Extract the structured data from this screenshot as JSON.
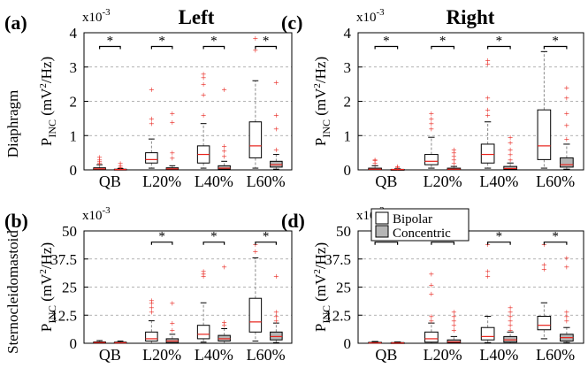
{
  "figure": {
    "col_titles": [
      "Left",
      "Right"
    ],
    "row_labels": [
      "Diaphragm",
      "Sternocleidomastoid"
    ],
    "ylabel_main": "P",
    "ylabel_sub": "INC",
    "ylabel_unit_pre": "(mV",
    "ylabel_unit_sup": "2",
    "ylabel_unit_post": "/Hz)",
    "exponent_base": "x10",
    "exponent_power": "-3",
    "legend": {
      "bipolar": "Bipolar",
      "concentric": "Concentric"
    },
    "colors": {
      "bipolar_fill": "#ffffff",
      "concentric_fill": "#b5b5b5",
      "median": "#e8231c",
      "outlier": "#e8231c",
      "whisker": "#8a8a8a",
      "grid": "#9a9a9a"
    }
  },
  "chart_data": [
    {
      "panel": "(a)",
      "title": "Left",
      "type": "box",
      "categories": [
        "QB",
        "L20%",
        "L40%",
        "L60%"
      ],
      "ylim": [
        0,
        4
      ],
      "yticks": [
        0,
        1,
        2,
        3,
        4
      ],
      "ytick_labels": [
        "0",
        "1",
        "2",
        "3",
        "4"
      ],
      "multiplier": "x10-3",
      "significance": [
        "*",
        "*",
        "*",
        "*"
      ],
      "series": [
        {
          "name": "Bipolar",
          "boxes": [
            {
              "min": 0,
              "q1": 0.01,
              "med": 0.03,
              "q3": 0.06,
              "max": 0.15,
              "outliers": [
                0.2,
                0.25,
                0.3,
                0.38
              ]
            },
            {
              "min": 0.05,
              "q1": 0.2,
              "med": 0.3,
              "q3": 0.5,
              "max": 0.9,
              "outliers": [
                1.35,
                1.5,
                2.35
              ]
            },
            {
              "min": 0.05,
              "q1": 0.2,
              "med": 0.45,
              "q3": 0.7,
              "max": 1.35,
              "outliers": [
                1.6,
                2.2,
                2.5,
                2.7,
                2.8
              ]
            },
            {
              "min": 0.05,
              "q1": 0.35,
              "med": 0.7,
              "q3": 1.4,
              "max": 2.6,
              "outliers": [
                3.5,
                3.85
              ]
            }
          ]
        },
        {
          "name": "Concentric",
          "boxes": [
            {
              "min": 0,
              "q1": 0.005,
              "med": 0.01,
              "q3": 0.02,
              "max": 0.04,
              "outliers": [
                0.08,
                0.12,
                0.2
              ]
            },
            {
              "min": 0,
              "q1": 0.01,
              "med": 0.03,
              "q3": 0.06,
              "max": 0.12,
              "outliers": [
                0.35,
                0.5,
                1.4,
                1.65
              ]
            },
            {
              "min": 0,
              "q1": 0.02,
              "med": 0.05,
              "q3": 0.12,
              "max": 0.25,
              "outliers": [
                0.4,
                0.55,
                0.7,
                2.35
              ]
            },
            {
              "min": 0.02,
              "q1": 0.08,
              "med": 0.15,
              "q3": 0.25,
              "max": 0.45,
              "outliers": [
                0.6,
                1.2,
                1.6,
                2.55
              ]
            }
          ]
        }
      ]
    },
    {
      "panel": "(c)",
      "title": "Right",
      "type": "box",
      "categories": [
        "QB",
        "L20%",
        "L40%",
        "L60%"
      ],
      "ylim": [
        0,
        4
      ],
      "yticks": [
        0,
        1,
        2,
        3,
        4
      ],
      "ytick_labels": [
        "0",
        "1",
        "2",
        "3",
        "4"
      ],
      "multiplier": "x10-3",
      "significance": [
        "*",
        "*",
        "*",
        "*"
      ],
      "series": [
        {
          "name": "Bipolar",
          "boxes": [
            {
              "min": 0,
              "q1": 0.01,
              "med": 0.02,
              "q3": 0.05,
              "max": 0.12,
              "outliers": [
                0.2,
                0.28,
                0.3
              ]
            },
            {
              "min": 0.05,
              "q1": 0.15,
              "med": 0.25,
              "q3": 0.45,
              "max": 0.95,
              "outliers": [
                1.2,
                1.35,
                1.5,
                1.65
              ]
            },
            {
              "min": 0.05,
              "q1": 0.2,
              "med": 0.45,
              "q3": 0.75,
              "max": 1.4,
              "outliers": [
                1.6,
                1.75,
                2.1,
                3.1,
                3.2
              ]
            },
            {
              "min": 0.05,
              "q1": 0.3,
              "med": 0.7,
              "q3": 1.75,
              "max": 3.45,
              "outliers": []
            }
          ]
        },
        {
          "name": "Concentric",
          "boxes": [
            {
              "min": 0,
              "q1": 0.005,
              "med": 0.01,
              "q3": 0.015,
              "max": 0.03,
              "outliers": [
                0.06,
                0.1
              ]
            },
            {
              "min": 0,
              "q1": 0.01,
              "med": 0.02,
              "q3": 0.05,
              "max": 0.1,
              "outliers": [
                0.2,
                0.3,
                0.4,
                0.5,
                0.6
              ]
            },
            {
              "min": 0,
              "q1": 0.02,
              "med": 0.04,
              "q3": 0.1,
              "max": 0.2,
              "outliers": [
                0.3,
                0.45,
                0.6,
                0.8,
                0.95
              ]
            },
            {
              "min": 0.02,
              "q1": 0.08,
              "med": 0.15,
              "q3": 0.35,
              "max": 0.75,
              "outliers": [
                0.9,
                1.3,
                1.65,
                2.1,
                2.4
              ]
            }
          ]
        }
      ]
    },
    {
      "panel": "(b)",
      "type": "box",
      "categories": [
        "QB",
        "L20%",
        "L40%",
        "L60%"
      ],
      "ylim": [
        0,
        50
      ],
      "yticks": [
        0,
        12.5,
        25,
        37.5,
        50
      ],
      "ytick_labels": [
        "0",
        "12.5",
        "25",
        "37.5",
        "50"
      ],
      "multiplier": "x10-3",
      "significance": [
        "",
        "*",
        "*",
        "*"
      ],
      "series": [
        {
          "name": "Bipolar",
          "boxes": [
            {
              "min": 0,
              "q1": 0.1,
              "med": 0.3,
              "q3": 0.6,
              "max": 1.2,
              "outliers": []
            },
            {
              "min": 0,
              "q1": 1,
              "med": 2,
              "q3": 5,
              "max": 10,
              "outliers": [
                14,
                16,
                18,
                19
              ]
            },
            {
              "min": 0.5,
              "q1": 2,
              "med": 4,
              "q3": 8,
              "max": 18,
              "outliers": [
                30,
                31,
                32
              ]
            },
            {
              "min": 1,
              "q1": 5,
              "med": 9.5,
              "q3": 20,
              "max": 38,
              "outliers": [
                41,
                44
              ]
            }
          ]
        },
        {
          "name": "Concentric",
          "boxes": [
            {
              "min": 0,
              "q1": 0.05,
              "med": 0.2,
              "q3": 0.5,
              "max": 1,
              "outliers": []
            },
            {
              "min": 0,
              "q1": 0.3,
              "med": 1,
              "q3": 2,
              "max": 4,
              "outliers": [
                6,
                9,
                18
              ]
            },
            {
              "min": 0,
              "q1": 1,
              "med": 2,
              "q3": 3.5,
              "max": 6.5,
              "outliers": [
                8,
                9.5,
                34
              ]
            },
            {
              "min": 0.3,
              "q1": 1.5,
              "med": 3,
              "q3": 5,
              "max": 9,
              "outliers": [
                10,
                12,
                14,
                30
              ]
            }
          ]
        }
      ]
    },
    {
      "panel": "(d)",
      "type": "box",
      "categories": [
        "QB",
        "L20%",
        "L40%",
        "L60%"
      ],
      "ylim": [
        0,
        50
      ],
      "yticks": [
        0,
        12.5,
        25,
        37.5,
        50
      ],
      "ytick_labels": [
        "0",
        "12.5",
        "25",
        "37.5",
        "50"
      ],
      "multiplier": "x10-3",
      "significance": [
        "*",
        "*",
        "*",
        "*"
      ],
      "series": [
        {
          "name": "Bipolar",
          "boxes": [
            {
              "min": 0,
              "q1": 0.05,
              "med": 0.15,
              "q3": 0.4,
              "max": 0.8,
              "outliers": []
            },
            {
              "min": 0,
              "q1": 0.5,
              "med": 2,
              "q3": 5,
              "max": 9,
              "outliers": [
                10,
                12,
                22,
                26,
                31
              ]
            },
            {
              "min": 0.3,
              "q1": 1.5,
              "med": 3,
              "q3": 7,
              "max": 12,
              "outliers": [
                30,
                32,
                44
              ]
            },
            {
              "min": 2,
              "q1": 6,
              "med": 8,
              "q3": 12,
              "max": 18,
              "outliers": [
                33,
                35,
                44
              ]
            }
          ]
        },
        {
          "name": "Concentric",
          "boxes": [
            {
              "min": 0,
              "q1": 0.02,
              "med": 0.1,
              "q3": 0.3,
              "max": 0.6,
              "outliers": []
            },
            {
              "min": 0,
              "q1": 0.2,
              "med": 0.6,
              "q3": 1.5,
              "max": 3,
              "outliers": [
                6,
                8,
                10,
                12,
                14
              ]
            },
            {
              "min": 0,
              "q1": 0.5,
              "med": 1.5,
              "q3": 3,
              "max": 5,
              "outliers": [
                6,
                8,
                10,
                12,
                14,
                16
              ]
            },
            {
              "min": 0.3,
              "q1": 1,
              "med": 2.5,
              "q3": 4,
              "max": 7,
              "outliers": [
                10,
                12,
                14,
                34,
                38
              ]
            }
          ]
        }
      ]
    }
  ]
}
